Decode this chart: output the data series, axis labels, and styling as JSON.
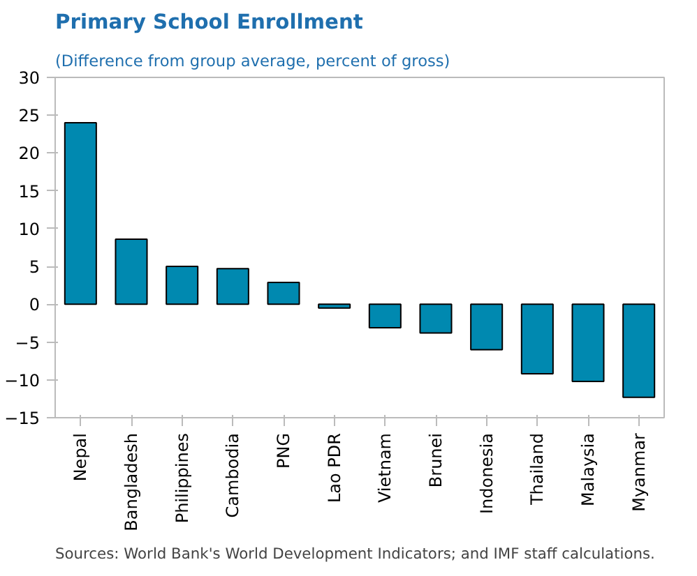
{
  "chart_data": {
    "type": "bar",
    "title": "Primary School Enrollment",
    "subtitle": "(Difference from group average, percent of gross)",
    "categories": [
      "Nepal",
      "Bangladesh",
      "Philippines",
      "Cambodia",
      "PNG",
      "Lao PDR",
      "Vietnam",
      "Brunei",
      "Indonesia",
      "Thailand",
      "Malaysia",
      "Myanmar"
    ],
    "values": [
      24.0,
      8.6,
      5.0,
      4.7,
      2.9,
      -0.5,
      -3.1,
      -3.8,
      -6.0,
      -9.2,
      -10.2,
      -12.3
    ],
    "color": "#0089b0",
    "ylim": [
      -15,
      30
    ],
    "yticks": [
      -15,
      -10,
      -5,
      0,
      5,
      10,
      15,
      20,
      25,
      30
    ],
    "grid": false,
    "annotations": [
      "Sources: World Bank's World Development Indicators; and IMF staff calculations."
    ]
  }
}
